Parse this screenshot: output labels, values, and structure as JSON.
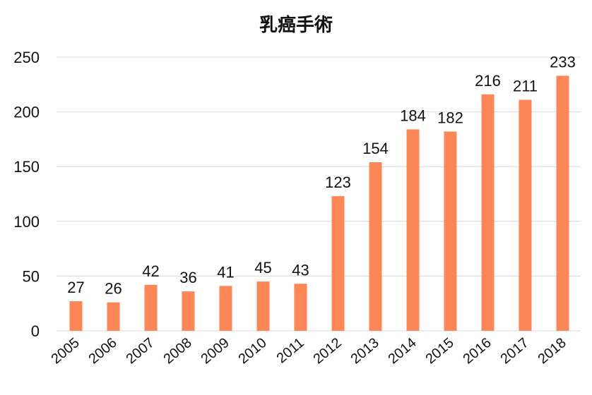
{
  "chart_data": {
    "type": "bar",
    "title": "乳癌手術",
    "xlabel": "",
    "ylabel": "",
    "categories": [
      "2005",
      "2006",
      "2007",
      "2008",
      "2009",
      "2010",
      "2011",
      "2012",
      "2013",
      "2014",
      "2015",
      "2016",
      "2017",
      "2018"
    ],
    "values": [
      27,
      26,
      42,
      36,
      41,
      45,
      43,
      123,
      154,
      184,
      182,
      216,
      211,
      233
    ],
    "ylim": [
      0,
      250
    ],
    "yticks": [
      "0",
      "50",
      "100",
      "150",
      "200",
      "250"
    ],
    "grid": true,
    "data_labels": true,
    "bar_color": "#fc8656",
    "grid_color": "#d9d9d9"
  }
}
